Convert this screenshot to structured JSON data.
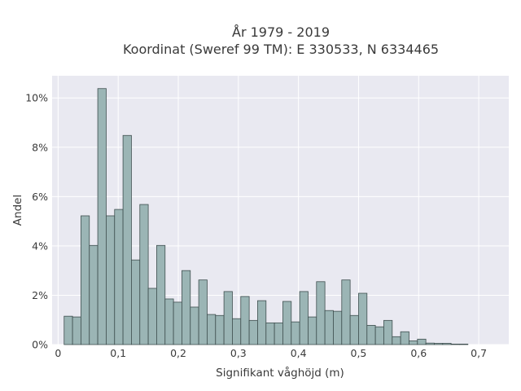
{
  "chart_data": {
    "type": "bar",
    "title_lines": [
      "År 1979 - 2019",
      "Koordinat (Sweref 99 TM): E 330533, N 6334465"
    ],
    "xlabel": "Signifikant våghöjd (m)",
    "ylabel": "Andel",
    "xlim": [
      -0.01,
      0.75
    ],
    "ylim": [
      0,
      10.9
    ],
    "x_ticks": [
      0,
      0.1,
      0.2,
      0.3,
      0.4,
      0.5,
      0.6,
      0.7
    ],
    "x_tick_labels": [
      "0",
      "0,1",
      "0,2",
      "0,3",
      "0,4",
      "0,5",
      "0,6",
      "0,7"
    ],
    "y_ticks": [
      0,
      2,
      4,
      6,
      8,
      10
    ],
    "y_tick_labels": [
      "0%",
      "2%",
      "4%",
      "6%",
      "8%",
      "10%"
    ],
    "bin_width": 0.014,
    "bin_start": 0.01,
    "values": [
      1.15,
      1.12,
      5.22,
      4.02,
      10.38,
      5.22,
      5.48,
      8.48,
      3.43,
      5.68,
      2.28,
      4.02,
      1.85,
      1.72,
      3.0,
      1.52,
      2.62,
      1.22,
      1.18,
      2.15,
      1.05,
      1.95,
      0.98,
      1.78,
      0.88,
      0.88,
      1.75,
      0.92,
      2.15,
      1.12,
      2.55,
      1.38,
      1.35,
      2.62,
      1.18,
      2.08,
      0.78,
      0.72,
      0.98,
      0.32,
      0.52,
      0.15,
      0.22,
      0.06,
      0.05,
      0.05,
      0.02,
      0.02
    ],
    "colors": {
      "bar_fill": "#9bb5b5",
      "bar_stroke": "#3f4f4f",
      "plot_bg": "#e9e9f1",
      "grid": "#ffffff"
    },
    "grid": true
  }
}
